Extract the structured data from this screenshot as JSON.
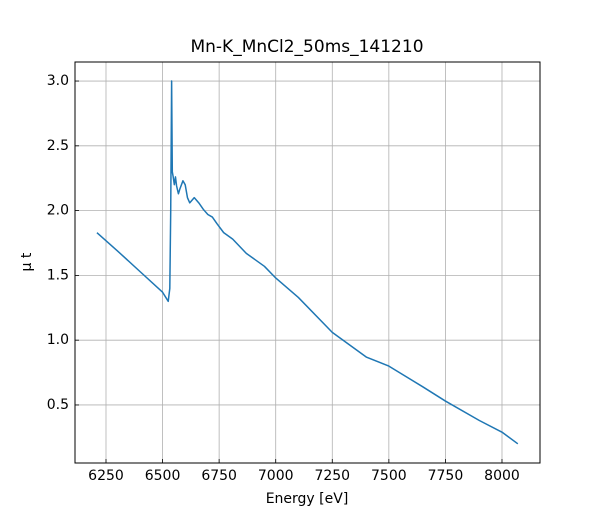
{
  "chart_data": {
    "type": "line",
    "title": "Mn-K_MnCl2_50ms_141210",
    "x_label": "Energy [eV]",
    "y_label": "μ t",
    "x": [
      6210,
      6300,
      6400,
      6500,
      6525,
      6532,
      6536,
      6540,
      6543,
      6547,
      6552,
      6557,
      6562,
      6570,
      6577,
      6590,
      6600,
      6610,
      6620,
      6640,
      6660,
      6680,
      6700,
      6720,
      6740,
      6770,
      6810,
      6870,
      6950,
      7000,
      7100,
      7250,
      7400,
      7500,
      7650,
      7750,
      7900,
      8000,
      8070
    ],
    "series": [
      {
        "name": "Mn-K_MnCl2_50ms_141210",
        "color": "#1f77b4",
        "values": [
          1.83,
          1.69,
          1.53,
          1.37,
          1.3,
          1.4,
          2.0,
          3.0,
          2.3,
          2.26,
          2.2,
          2.26,
          2.19,
          2.13,
          2.17,
          2.23,
          2.2,
          2.1,
          2.06,
          2.1,
          2.06,
          2.01,
          1.97,
          1.95,
          1.9,
          1.83,
          1.78,
          1.67,
          1.57,
          1.48,
          1.33,
          1.06,
          0.87,
          0.8,
          0.64,
          0.53,
          0.38,
          0.29,
          0.2
        ]
      }
    ],
    "xlim": [
      6113,
      8168
    ],
    "ylim": [
      0.052,
      3.147
    ],
    "xticks": [
      6250,
      6500,
      6750,
      7000,
      7250,
      7500,
      7750,
      8000
    ],
    "yticks": [
      0.5,
      {
        "value": 1,
        "label": "1.0"
      },
      1.5,
      {
        "value": 2,
        "label": "2.0"
      },
      2.5,
      {
        "value": 3,
        "label": "3.0"
      }
    ],
    "grid": true
  }
}
